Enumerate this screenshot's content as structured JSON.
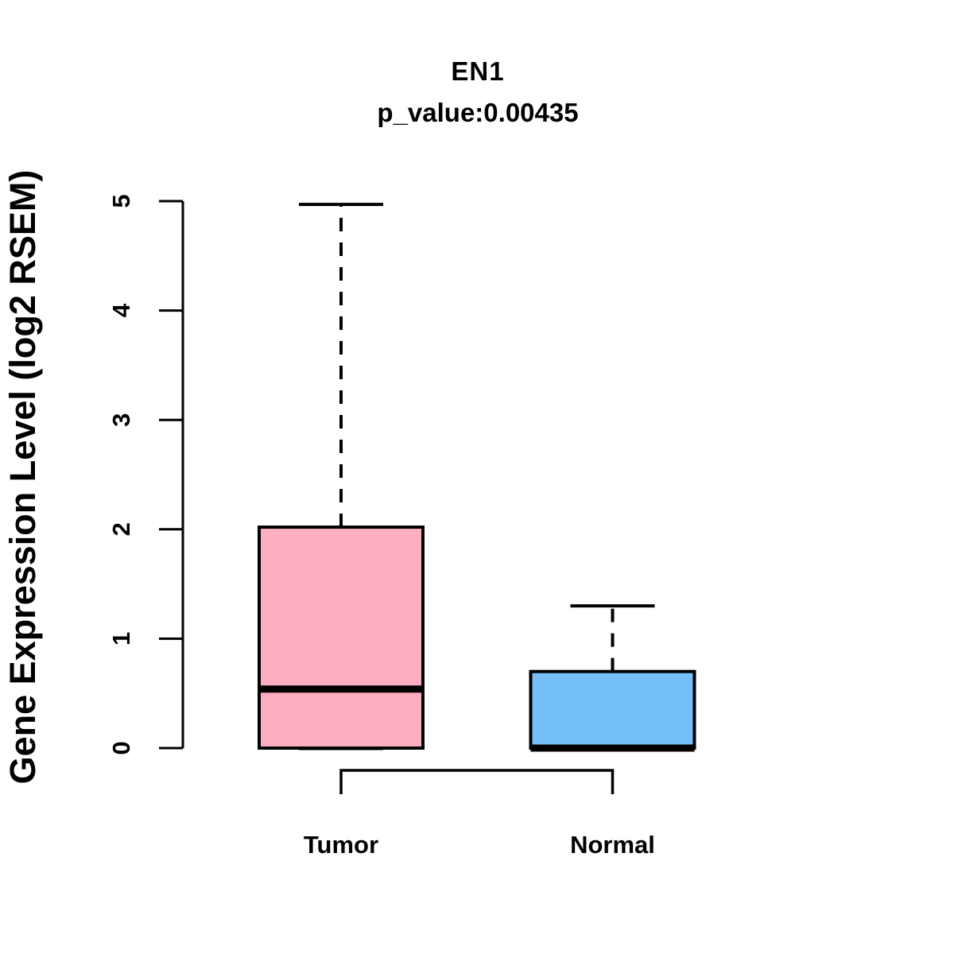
{
  "page": {
    "background_color": "#FFFFFF",
    "text_color": "#000000"
  },
  "chart_data": {
    "type": "boxplot",
    "title": "EN1",
    "subtitle": "p_value:0.00435",
    "p_value": 0.00435,
    "gene": "EN1",
    "ylabel": "Gene Expression Level (log2 RSEM)",
    "xlabel": "",
    "ylim": [
      0,
      5
    ],
    "yticks": [
      0,
      1,
      2,
      3,
      4,
      5
    ],
    "grid": "off",
    "legend": "none",
    "categories": [
      "Tumor",
      "Normal"
    ],
    "series": [
      {
        "name": "Tumor",
        "fill_color": "#FDAEC0",
        "min": 0,
        "q1": 0,
        "median": 0.54,
        "q3": 2.02,
        "max": 4.97
      },
      {
        "name": "Normal",
        "fill_color": "#74BFF7",
        "min": 0,
        "q1": 0,
        "median": 0.0,
        "q3": 0.7,
        "max": 1.3
      }
    ],
    "stroke_color": "#000000",
    "whisker_style": "dashed",
    "comparison_bracket": {
      "between": [
        "Tumor",
        "Normal"
      ]
    }
  }
}
